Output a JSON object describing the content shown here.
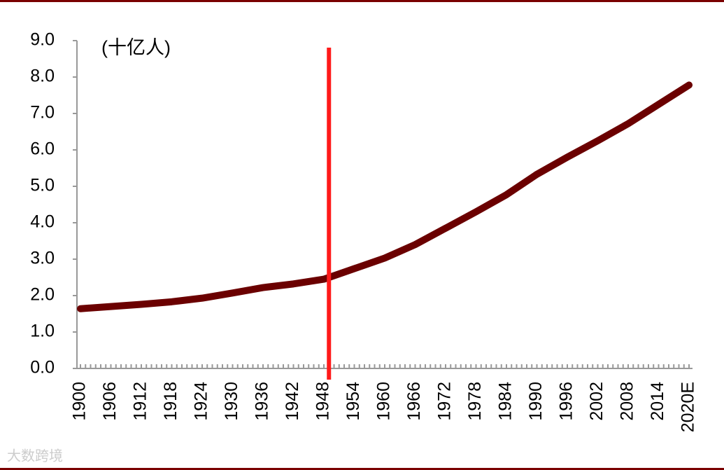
{
  "chart_data": {
    "type": "line",
    "unit_label": "(十亿人)",
    "watermark": "大数跨境",
    "categories": [
      "1900",
      "1906",
      "1912",
      "1918",
      "1924",
      "1930",
      "1936",
      "1942",
      "1948",
      "1954",
      "1960",
      "1966",
      "1972",
      "1978",
      "1984",
      "1990",
      "1996",
      "2002",
      "2008",
      "2014",
      "2020E"
    ],
    "series": [
      {
        "color": "#6b0000",
        "values": [
          1.64,
          1.7,
          1.76,
          1.83,
          1.93,
          2.07,
          2.22,
          2.32,
          2.45,
          2.74,
          3.03,
          3.4,
          3.85,
          4.3,
          4.77,
          5.33,
          5.8,
          6.25,
          6.72,
          7.25,
          7.78
        ]
      }
    ],
    "vline": {
      "year": 1949,
      "color": "#ff1a1a"
    },
    "ylim": [
      0,
      9
    ],
    "yticks": [
      {
        "value": 0,
        "label": "0.0"
      },
      {
        "value": 1,
        "label": "1.0"
      },
      {
        "value": 2,
        "label": "2.0"
      },
      {
        "value": 3,
        "label": "3.0"
      },
      {
        "value": 4,
        "label": "4.0"
      },
      {
        "value": 5,
        "label": "5.0"
      },
      {
        "value": 6,
        "label": "6.0"
      },
      {
        "value": 7,
        "label": "7.0"
      },
      {
        "value": 8,
        "label": "8.0"
      },
      {
        "value": 9,
        "label": "9.0"
      }
    ]
  }
}
